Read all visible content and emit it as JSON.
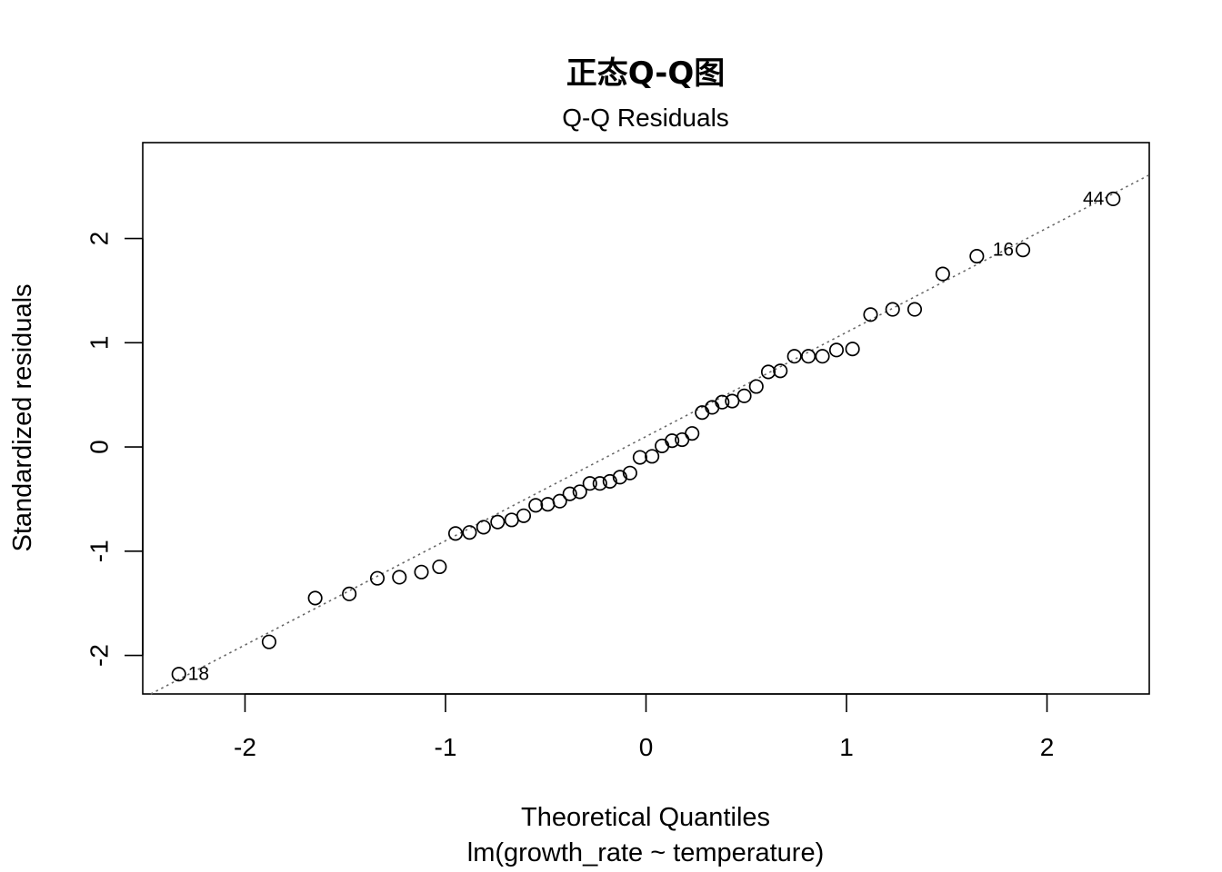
{
  "chart_data": {
    "type": "scatter",
    "title": "正态Q-Q图",
    "subtitle": "Q-Q Residuals",
    "xlabel": "Theoretical Quantiles",
    "xlabel_sub": "lm(growth_rate ~ temperature)",
    "ylabel": "Standardized residuals",
    "xlim": [
      -2.51,
      2.51
    ],
    "ylim": [
      -2.37,
      2.92
    ],
    "xticks": [
      -2,
      -1,
      0,
      1,
      2
    ],
    "yticks": [
      -2,
      -1,
      0,
      1,
      2
    ],
    "grid": false,
    "reference_line": {
      "slope": 1.0,
      "intercept": 0.1,
      "style": "dotted",
      "color": "#666666"
    },
    "points": [
      {
        "x": -2.33,
        "y": -2.18,
        "label": "18"
      },
      {
        "x": -1.88,
        "y": -1.87
      },
      {
        "x": -1.65,
        "y": -1.45
      },
      {
        "x": -1.48,
        "y": -1.41
      },
      {
        "x": -1.34,
        "y": -1.26
      },
      {
        "x": -1.23,
        "y": -1.25
      },
      {
        "x": -1.12,
        "y": -1.2
      },
      {
        "x": -1.03,
        "y": -1.15
      },
      {
        "x": -0.95,
        "y": -0.83
      },
      {
        "x": -0.88,
        "y": -0.82
      },
      {
        "x": -0.81,
        "y": -0.77
      },
      {
        "x": -0.74,
        "y": -0.72
      },
      {
        "x": -0.67,
        "y": -0.7
      },
      {
        "x": -0.61,
        "y": -0.66
      },
      {
        "x": -0.55,
        "y": -0.56
      },
      {
        "x": -0.49,
        "y": -0.55
      },
      {
        "x": -0.43,
        "y": -0.52
      },
      {
        "x": -0.38,
        "y": -0.45
      },
      {
        "x": -0.33,
        "y": -0.43
      },
      {
        "x": -0.28,
        "y": -0.35
      },
      {
        "x": -0.23,
        "y": -0.35
      },
      {
        "x": -0.18,
        "y": -0.33
      },
      {
        "x": -0.13,
        "y": -0.29
      },
      {
        "x": -0.08,
        "y": -0.25
      },
      {
        "x": -0.03,
        "y": -0.1
      },
      {
        "x": 0.03,
        "y": -0.09
      },
      {
        "x": 0.08,
        "y": 0.01
      },
      {
        "x": 0.13,
        "y": 0.06
      },
      {
        "x": 0.18,
        "y": 0.07
      },
      {
        "x": 0.23,
        "y": 0.13
      },
      {
        "x": 0.28,
        "y": 0.33
      },
      {
        "x": 0.33,
        "y": 0.38
      },
      {
        "x": 0.38,
        "y": 0.43
      },
      {
        "x": 0.43,
        "y": 0.44
      },
      {
        "x": 0.49,
        "y": 0.49
      },
      {
        "x": 0.55,
        "y": 0.58
      },
      {
        "x": 0.61,
        "y": 0.72
      },
      {
        "x": 0.67,
        "y": 0.73
      },
      {
        "x": 0.74,
        "y": 0.87
      },
      {
        "x": 0.81,
        "y": 0.87
      },
      {
        "x": 0.88,
        "y": 0.87
      },
      {
        "x": 0.95,
        "y": 0.93
      },
      {
        "x": 1.03,
        "y": 0.94
      },
      {
        "x": 1.12,
        "y": 1.27
      },
      {
        "x": 1.23,
        "y": 1.32
      },
      {
        "x": 1.34,
        "y": 1.32
      },
      {
        "x": 1.48,
        "y": 1.66
      },
      {
        "x": 1.65,
        "y": 1.83
      },
      {
        "x": 1.88,
        "y": 1.89,
        "label": "16"
      },
      {
        "x": 2.33,
        "y": 2.38,
        "label": "44"
      }
    ]
  }
}
